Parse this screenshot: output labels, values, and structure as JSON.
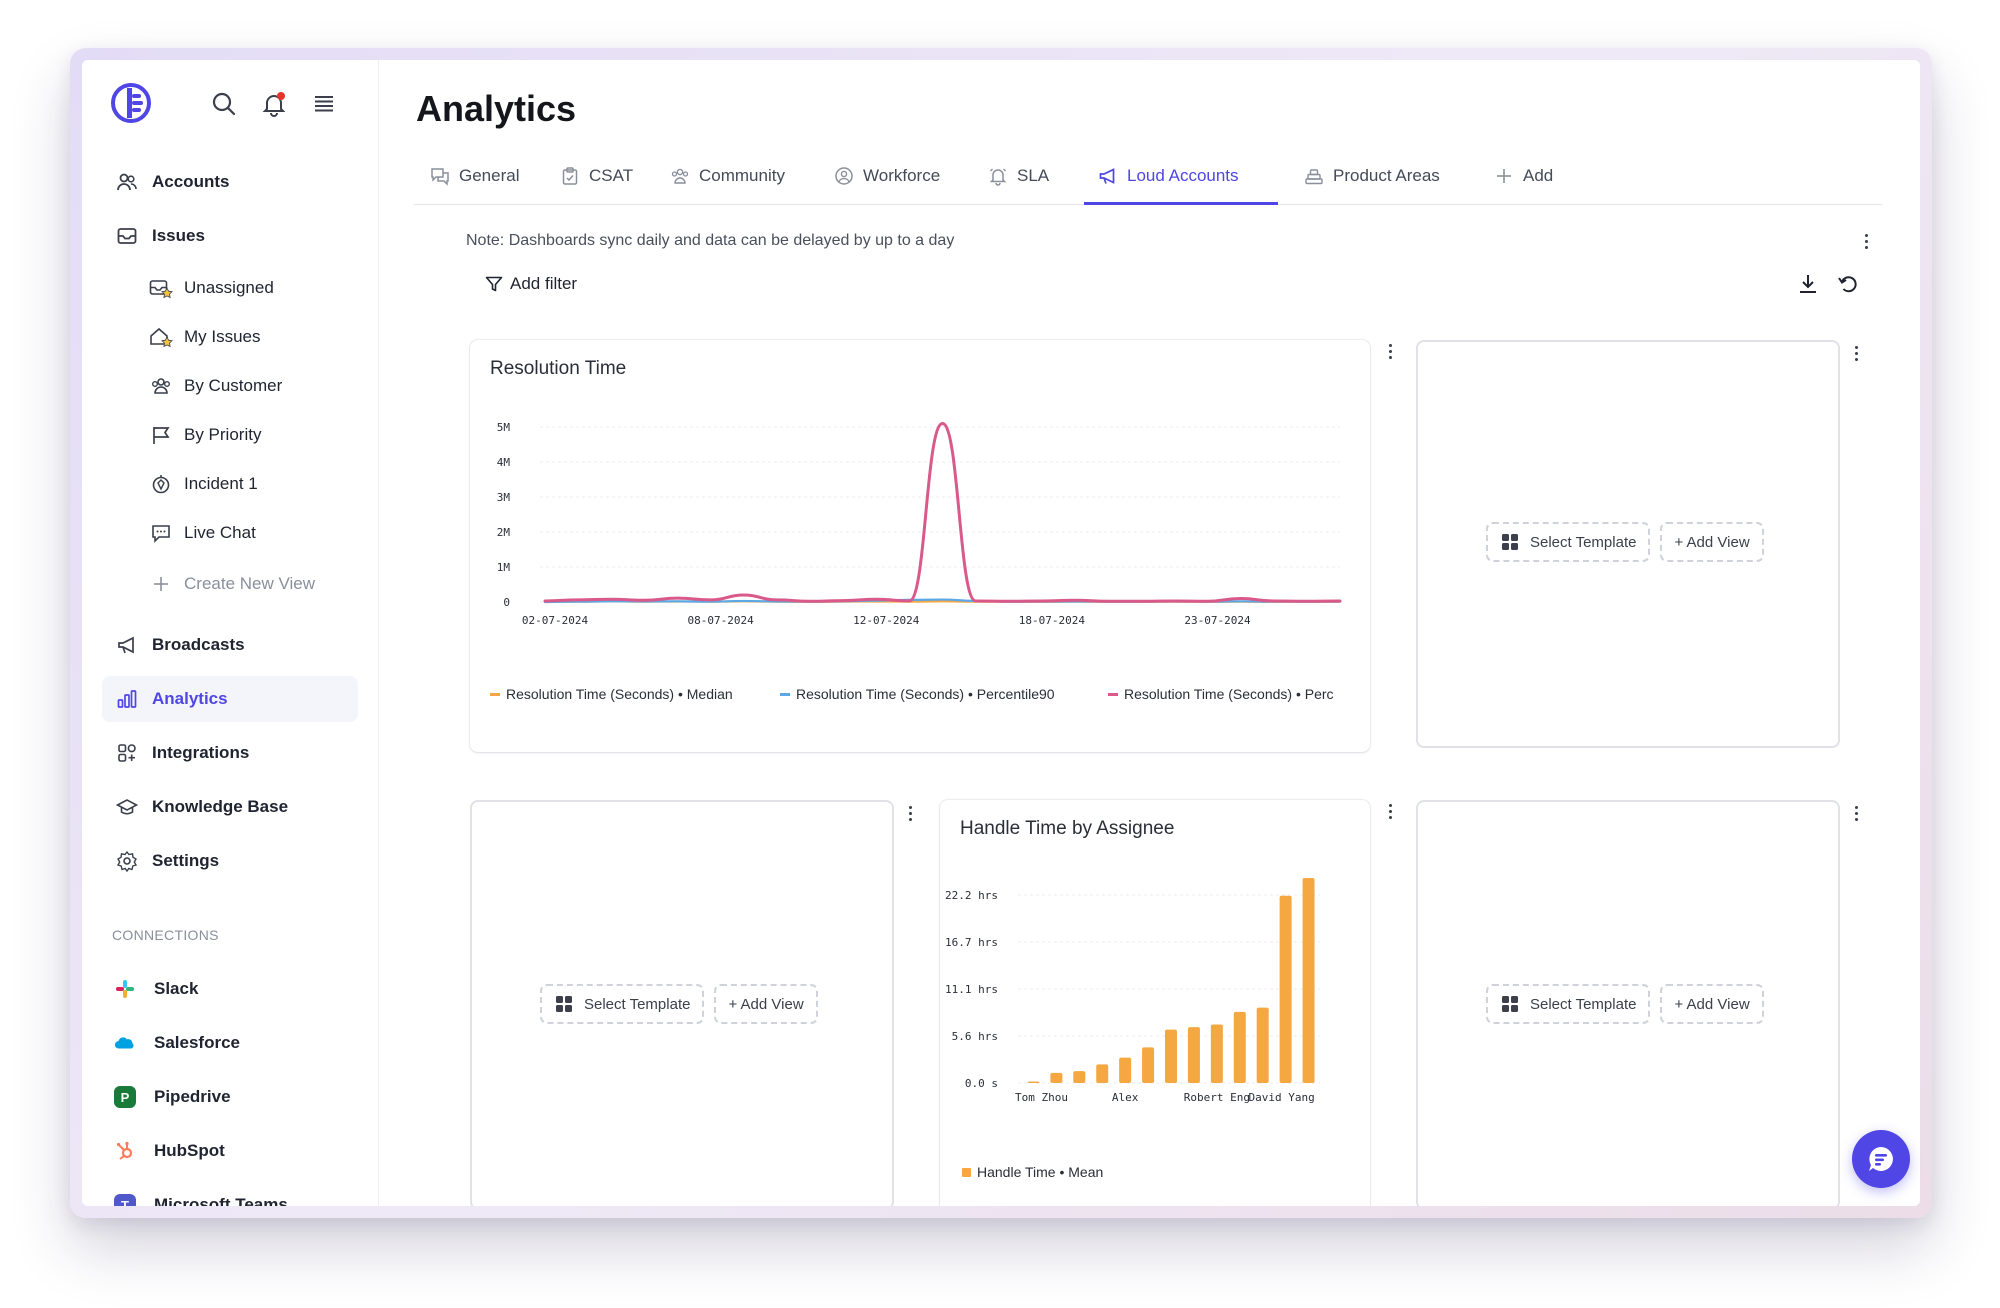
{
  "sidebar": {
    "nav_main": [
      {
        "label": "Accounts",
        "icon": "users-icon"
      },
      {
        "label": "Issues",
        "icon": "inbox-icon"
      }
    ],
    "sub_items": [
      {
        "label": "Unassigned",
        "icon": "inbox-star-icon"
      },
      {
        "label": "My Issues",
        "icon": "home-star-icon"
      },
      {
        "label": "By Customer",
        "icon": "group-icon"
      },
      {
        "label": "By Priority",
        "icon": "flag-icon"
      },
      {
        "label": "Incident 1",
        "icon": "alert-icon"
      },
      {
        "label": "Live Chat",
        "icon": "chat-icon"
      },
      {
        "label": "Create New View",
        "icon": "plus-icon"
      }
    ],
    "nav_secondary": [
      {
        "label": "Broadcasts",
        "icon": "megaphone-icon"
      },
      {
        "label": "Analytics",
        "icon": "bar-chart-icon",
        "active": true
      },
      {
        "label": "Integrations",
        "icon": "grid-icon"
      },
      {
        "label": "Knowledge Base",
        "icon": "graduation-cap-icon"
      },
      {
        "label": "Settings",
        "icon": "gear-icon"
      }
    ],
    "connections_label": "CONNECTIONS",
    "connections": [
      {
        "label": "Slack",
        "color": "#e01e5a"
      },
      {
        "label": "Salesforce",
        "color": "#00a1e0"
      },
      {
        "label": "Pipedrive",
        "color": "#1a7a3a"
      },
      {
        "label": "HubSpot",
        "color": "#ff7a59"
      },
      {
        "label": "Microsoft Teams",
        "color": "#5059c9"
      }
    ]
  },
  "page": {
    "title": "Analytics",
    "note": "Note: Dashboards sync daily and data can be delayed by up to a day",
    "add_filter": "Add filter"
  },
  "tabs": [
    {
      "label": "General",
      "icon": "chat-bubbles-icon"
    },
    {
      "label": "CSAT",
      "icon": "clipboard-icon"
    },
    {
      "label": "Community",
      "icon": "community-icon"
    },
    {
      "label": "Workforce",
      "icon": "user-circle-icon"
    },
    {
      "label": "SLA",
      "icon": "bell-icon"
    },
    {
      "label": "Loud Accounts",
      "icon": "megaphone-icon",
      "active": true
    },
    {
      "label": "Product Areas",
      "icon": "layers-icon"
    },
    {
      "label": "Add",
      "icon": "plus-icon"
    }
  ],
  "empty_card": {
    "select_template": "Select Template",
    "add_view": "+ Add View"
  },
  "colors": {
    "accent": "#4f46e5",
    "median": "#f5a842",
    "percentile90": "#5aa9e6",
    "percentile_other": "#d9598a",
    "bar": "#f5a842"
  },
  "chart_data": [
    {
      "type": "line",
      "title": "Resolution Time",
      "x_tick_labels": [
        "02-07-2024",
        "08-07-2024",
        "12-07-2024",
        "18-07-2024",
        "23-07-2024"
      ],
      "y_tick_labels": [
        "0",
        "1M",
        "2M",
        "3M",
        "4M",
        "5M"
      ],
      "ylim": [
        0,
        5200000
      ],
      "x": [
        "02-07-2024",
        "03-07-2024",
        "04-07-2024",
        "05-07-2024",
        "06-07-2024",
        "07-07-2024",
        "08-07-2024",
        "09-07-2024",
        "10-07-2024",
        "11-07-2024",
        "12-07-2024",
        "13-07-2024",
        "14-07-2024",
        "15-07-2024",
        "16-07-2024",
        "17-07-2024",
        "18-07-2024",
        "19-07-2024",
        "20-07-2024",
        "21-07-2024",
        "22-07-2024",
        "23-07-2024",
        "24-07-2024",
        "25-07-2024",
        "26-07-2024"
      ],
      "series": [
        {
          "name": "Resolution Time (Seconds) • Median",
          "values": [
            0,
            10000,
            20000,
            10000,
            15000,
            10000,
            20000,
            10000,
            5000,
            10000,
            15000,
            10000,
            20000,
            10000,
            5000,
            5000,
            10000,
            5000,
            5000,
            10000,
            5000,
            10000,
            5000,
            5000,
            5000
          ]
        },
        {
          "name": "Resolution Time (Seconds) • Percentile90",
          "values": [
            0,
            10000,
            20000,
            15000,
            20000,
            10000,
            30000,
            15000,
            10000,
            20000,
            40000,
            60000,
            70000,
            30000,
            10000,
            10000,
            15000,
            10000,
            10000,
            15000,
            10000,
            20000,
            10000,
            10000,
            10000
          ]
        },
        {
          "name": "Resolution Time (Seconds) • Perc",
          "values": [
            30000,
            60000,
            80000,
            50000,
            110000,
            60000,
            200000,
            60000,
            20000,
            40000,
            80000,
            30000,
            5100000,
            30000,
            20000,
            30000,
            50000,
            20000,
            20000,
            30000,
            20000,
            100000,
            30000,
            20000,
            30000
          ]
        }
      ],
      "legend": "bottom",
      "grid": true
    },
    {
      "type": "bar",
      "title": "Handle Time by Assignee",
      "y_tick_labels": [
        "0.0 s",
        "5.6 hrs",
        "11.1 hrs",
        "16.7 hrs",
        "22.2 hrs"
      ],
      "ylim": [
        0,
        24.2
      ],
      "x_tick_labels": [
        "Tom Zhou",
        "Alex",
        "Robert Eng",
        "David Yang"
      ],
      "series": [
        {
          "name": "Handle Time • Mean",
          "values": [
            0.1,
            1.2,
            1.4,
            2.2,
            3.0,
            4.2,
            6.3,
            6.6,
            6.9,
            8.4,
            8.9,
            22.1,
            24.2
          ]
        }
      ],
      "legend": "bottom",
      "grid": true
    }
  ]
}
